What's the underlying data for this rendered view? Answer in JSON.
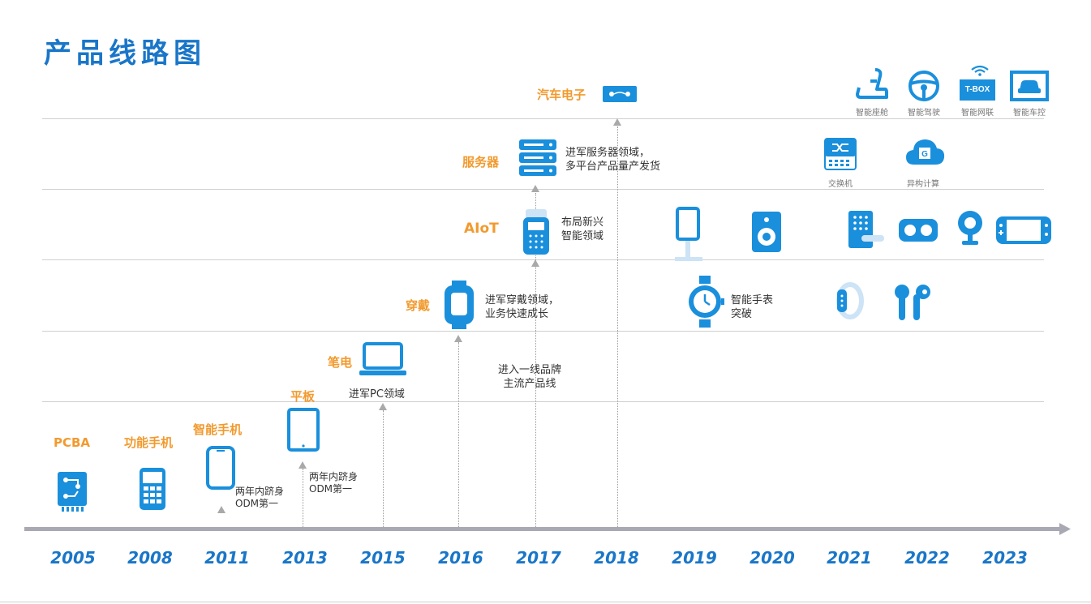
{
  "title": "产品线路图",
  "categories": {
    "pcba": "PCBA",
    "feature_phone": "功能手机",
    "smartphone": "智能手机",
    "tablet": "平板",
    "laptop": "笔电",
    "wearable": "穿戴",
    "aiot": "AIoT",
    "server": "服务器",
    "auto": "汽车电子"
  },
  "notes": {
    "smartphone": [
      "两年内跻身",
      "ODM第一"
    ],
    "tablet": [
      "两年内跻身",
      "ODM第一"
    ],
    "laptop": "进军PC领域",
    "wearable": [
      "进军穿戴领域，",
      "业务快速成长"
    ],
    "tier1": [
      "进入一线品牌",
      "主流产品线"
    ],
    "aiot": [
      "布局新兴",
      "智能领域"
    ],
    "server": [
      "进军服务器领域，",
      "多平台产品量产发货"
    ],
    "watch": [
      "智能手表",
      "突破"
    ]
  },
  "small_labels": {
    "switch": "交换机",
    "hetero": "异构计算",
    "cockpit": "智能座舱",
    "driving": "智能驾驶",
    "tbox": "智能网联",
    "carcontrol": "智能车控",
    "tbox_text": "T-BOX"
  },
  "years": [
    "2005",
    "2008",
    "2011",
    "2013",
    "2015",
    "2016",
    "2017",
    "2018",
    "2019",
    "2020",
    "2021",
    "2022",
    "2023"
  ],
  "colors": {
    "primary": "#1976c8",
    "icon_blue": "#1a8fdc",
    "orange": "#f29a2e",
    "axis": "#a9a9b4"
  },
  "icons": [
    "pcb-board-icon",
    "feature-phone-icon",
    "smartphone-icon",
    "tablet-icon",
    "laptop-icon",
    "smartwatch-icon",
    "handheld-terminal-icon",
    "server-icon",
    "car-module-icon",
    "kiosk-icon",
    "speaker-icon",
    "smart-lock-icon",
    "vr-goggles-icon",
    "webcam-icon",
    "game-console-icon",
    "network-switch-icon",
    "cloud-gpu-icon",
    "car-seat-icon",
    "steering-wheel-icon",
    "tbox-icon",
    "car-control-icon",
    "analog-watch-icon",
    "fitness-band-icon",
    "earbuds-icon",
    "wifi-icon"
  ]
}
